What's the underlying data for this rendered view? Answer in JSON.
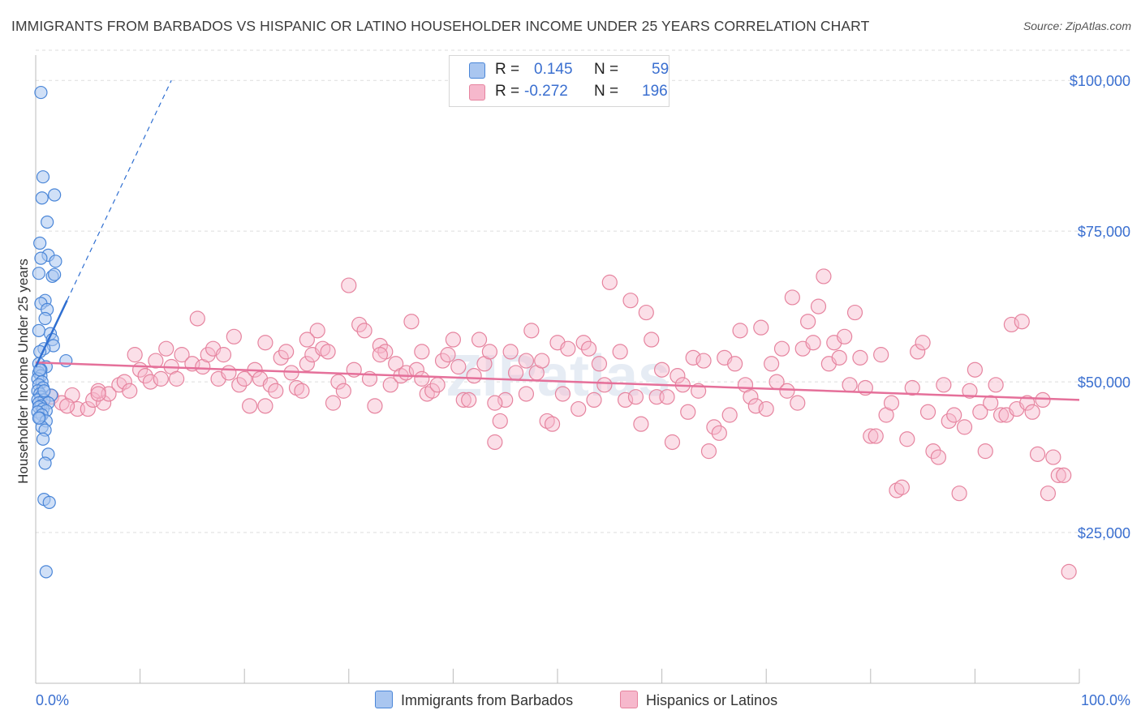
{
  "title": "IMMIGRANTS FROM BARBADOS VS HISPANIC OR LATINO HOUSEHOLDER INCOME UNDER 25 YEARS CORRELATION CHART",
  "source": "Source: ZipAtlas.com",
  "watermark": "ZIPatlas",
  "legend": {
    "r_label": "R =",
    "n_label": "N =",
    "series1": {
      "r": "0.145",
      "n": "59"
    },
    "series2": {
      "r": "-0.272",
      "n": "196"
    }
  },
  "colors": {
    "blue_fill": "#a9c6f0",
    "blue_stroke": "#4a86d8",
    "blue_line": "#2f6fd1",
    "pink_fill": "#f6b8cc",
    "pink_stroke": "#e6849f",
    "pink_line": "#e5709a",
    "axis_text": "#3a6fd0",
    "grid": "#dddddd"
  },
  "chart_data": {
    "type": "scatter",
    "title": "IMMIGRANTS FROM BARBADOS VS HISPANIC OR LATINO HOUSEHOLDER INCOME UNDER 25 YEARS CORRELATION CHART",
    "xlabel": "",
    "ylabel": "Householder Income Under 25 years",
    "xlim": [
      0,
      100
    ],
    "ylim": [
      0,
      105000
    ],
    "x_tick_labels": [
      "0.0%",
      "100.0%"
    ],
    "y_ticks": [
      25000,
      50000,
      75000,
      100000
    ],
    "y_tick_labels": [
      "$25,000",
      "$50,000",
      "$75,000",
      "$100,000"
    ],
    "grid": "horizontal dashed",
    "legend_position": "top-center",
    "series": [
      {
        "name": "Immigrants from Barbados",
        "points": [
          [
            0.5,
            98000
          ],
          [
            0.7,
            84000
          ],
          [
            1.8,
            81000
          ],
          [
            0.6,
            80500
          ],
          [
            1.1,
            76500
          ],
          [
            0.4,
            73000
          ],
          [
            1.2,
            71000
          ],
          [
            0.5,
            70500
          ],
          [
            1.9,
            70000
          ],
          [
            0.3,
            68000
          ],
          [
            1.6,
            67500
          ],
          [
            1.8,
            67800
          ],
          [
            0.9,
            63500
          ],
          [
            0.5,
            63000
          ],
          [
            1.1,
            62000
          ],
          [
            0.9,
            60500
          ],
          [
            1.4,
            58000
          ],
          [
            0.3,
            58500
          ],
          [
            1.6,
            57000
          ],
          [
            1.7,
            56000
          ],
          [
            0.8,
            55500
          ],
          [
            0.4,
            55000
          ],
          [
            2.9,
            53500
          ],
          [
            0.3,
            53000
          ],
          [
            1.0,
            52500
          ],
          [
            0.5,
            52000
          ],
          [
            0.3,
            51500
          ],
          [
            0.5,
            51000
          ],
          [
            0.2,
            50500
          ],
          [
            0.6,
            50000
          ],
          [
            0.3,
            49500
          ],
          [
            0.7,
            49000
          ],
          [
            0.2,
            48500
          ],
          [
            0.4,
            48000
          ],
          [
            1.5,
            47800
          ],
          [
            0.5,
            47500
          ],
          [
            0.2,
            47000
          ],
          [
            0.8,
            47000
          ],
          [
            0.3,
            46500
          ],
          [
            1.2,
            46500
          ],
          [
            0.5,
            46000
          ],
          [
            0.3,
            45800
          ],
          [
            0.7,
            45500
          ],
          [
            1.0,
            45200
          ],
          [
            0.2,
            45000
          ],
          [
            0.6,
            44500
          ],
          [
            0.4,
            44000
          ],
          [
            1.0,
            43500
          ],
          [
            0.6,
            42500
          ],
          [
            0.9,
            42000
          ],
          [
            0.7,
            40500
          ],
          [
            1.2,
            38000
          ],
          [
            0.9,
            36500
          ],
          [
            0.8,
            30500
          ],
          [
            1.3,
            30000
          ],
          [
            1.0,
            18500
          ],
          [
            0.3,
            44000
          ],
          [
            0.8,
            48500
          ],
          [
            0.4,
            52000
          ]
        ],
        "trend": {
          "x1": 0,
          "y1": 52500,
          "x2": 3,
          "y2": 63500,
          "dashed_extension_to": [
            13,
            100000
          ]
        }
      },
      {
        "name": "Hispanics or Latinos",
        "points": [
          [
            1.5,
            47500
          ],
          [
            2.5,
            46500
          ],
          [
            3.5,
            47800
          ],
          [
            4.0,
            45500
          ],
          [
            5.0,
            45500
          ],
          [
            5.5,
            47000
          ],
          [
            6.5,
            46500
          ],
          [
            6.0,
            48500
          ],
          [
            7.0,
            48000
          ],
          [
            8.0,
            49500
          ],
          [
            8.5,
            50000
          ],
          [
            9.0,
            48500
          ],
          [
            9.5,
            54500
          ],
          [
            10.0,
            52000
          ],
          [
            10.5,
            51000
          ],
          [
            11.0,
            50000
          ],
          [
            11.5,
            53500
          ],
          [
            12.0,
            50500
          ],
          [
            12.5,
            55500
          ],
          [
            13.0,
            52500
          ],
          [
            13.5,
            50500
          ],
          [
            14.0,
            54500
          ],
          [
            15.0,
            53000
          ],
          [
            15.5,
            60500
          ],
          [
            16.0,
            52500
          ],
          [
            16.5,
            54500
          ],
          [
            17.0,
            55500
          ],
          [
            17.5,
            50500
          ],
          [
            18.0,
            54500
          ],
          [
            18.5,
            51500
          ],
          [
            19.0,
            57500
          ],
          [
            19.5,
            49500
          ],
          [
            20.0,
            50500
          ],
          [
            20.5,
            46000
          ],
          [
            21.0,
            52000
          ],
          [
            21.5,
            50500
          ],
          [
            22.0,
            56500
          ],
          [
            22.5,
            49500
          ],
          [
            23.0,
            48500
          ],
          [
            23.5,
            54000
          ],
          [
            24.0,
            55000
          ],
          [
            24.5,
            51500
          ],
          [
            25.0,
            49000
          ],
          [
            25.5,
            48500
          ],
          [
            26.0,
            53000
          ],
          [
            26.5,
            54500
          ],
          [
            27.0,
            58500
          ],
          [
            27.5,
            55500
          ],
          [
            28.0,
            55000
          ],
          [
            28.5,
            46500
          ],
          [
            29.0,
            50000
          ],
          [
            29.5,
            48500
          ],
          [
            30.0,
            66000
          ],
          [
            30.5,
            52000
          ],
          [
            31.0,
            59500
          ],
          [
            31.5,
            58500
          ],
          [
            32.0,
            50500
          ],
          [
            32.5,
            46000
          ],
          [
            33.0,
            56000
          ],
          [
            33.5,
            55000
          ],
          [
            34.0,
            49500
          ],
          [
            34.5,
            53000
          ],
          [
            35.0,
            51000
          ],
          [
            35.5,
            51500
          ],
          [
            36.0,
            60000
          ],
          [
            36.5,
            52000
          ],
          [
            37.0,
            55000
          ],
          [
            37.5,
            48000
          ],
          [
            38.0,
            48500
          ],
          [
            38.5,
            49500
          ],
          [
            39.0,
            53500
          ],
          [
            39.5,
            54500
          ],
          [
            40.0,
            57000
          ],
          [
            40.5,
            52500
          ],
          [
            41.0,
            47000
          ],
          [
            41.5,
            47000
          ],
          [
            42.0,
            51000
          ],
          [
            42.5,
            57000
          ],
          [
            43.0,
            53000
          ],
          [
            43.5,
            55000
          ],
          [
            44.0,
            40000
          ],
          [
            44.5,
            43500
          ],
          [
            45.0,
            47000
          ],
          [
            45.5,
            55000
          ],
          [
            46.0,
            51500
          ],
          [
            47.0,
            48000
          ],
          [
            47.5,
            58500
          ],
          [
            48.0,
            51500
          ],
          [
            48.5,
            53500
          ],
          [
            49.0,
            43500
          ],
          [
            49.5,
            43000
          ],
          [
            50.0,
            56500
          ],
          [
            50.5,
            48000
          ],
          [
            51.0,
            55500
          ],
          [
            52.0,
            45500
          ],
          [
            52.5,
            56500
          ],
          [
            53.0,
            55500
          ],
          [
            53.5,
            47000
          ],
          [
            54.0,
            53000
          ],
          [
            54.5,
            49500
          ],
          [
            55.0,
            66500
          ],
          [
            56.0,
            55000
          ],
          [
            56.5,
            47000
          ],
          [
            57.0,
            63500
          ],
          [
            57.5,
            47500
          ],
          [
            58.0,
            43000
          ],
          [
            58.5,
            61500
          ],
          [
            59.0,
            57000
          ],
          [
            59.5,
            47500
          ],
          [
            60.0,
            52000
          ],
          [
            60.5,
            47500
          ],
          [
            61.0,
            40000
          ],
          [
            61.5,
            51000
          ],
          [
            62.0,
            49500
          ],
          [
            62.5,
            45000
          ],
          [
            63.0,
            54000
          ],
          [
            63.5,
            48500
          ],
          [
            64.0,
            53500
          ],
          [
            64.5,
            38500
          ],
          [
            65.0,
            42500
          ],
          [
            65.5,
            41500
          ],
          [
            66.0,
            54000
          ],
          [
            66.5,
            44500
          ],
          [
            67.0,
            53000
          ],
          [
            67.5,
            58500
          ],
          [
            68.0,
            49500
          ],
          [
            68.5,
            47500
          ],
          [
            69.0,
            46000
          ],
          [
            69.5,
            59000
          ],
          [
            70.0,
            45500
          ],
          [
            70.5,
            53000
          ],
          [
            71.0,
            50000
          ],
          [
            71.5,
            55500
          ],
          [
            72.0,
            48500
          ],
          [
            72.5,
            64000
          ],
          [
            73.0,
            46500
          ],
          [
            73.5,
            55500
          ],
          [
            74.0,
            60000
          ],
          [
            74.5,
            56500
          ],
          [
            75.0,
            62500
          ],
          [
            75.5,
            67500
          ],
          [
            76.0,
            53000
          ],
          [
            76.5,
            56500
          ],
          [
            77.0,
            54000
          ],
          [
            77.5,
            57500
          ],
          [
            78.0,
            49500
          ],
          [
            78.5,
            61500
          ],
          [
            79.0,
            54000
          ],
          [
            79.5,
            49000
          ],
          [
            80.0,
            41000
          ],
          [
            80.5,
            41000
          ],
          [
            81.0,
            54500
          ],
          [
            81.5,
            44500
          ],
          [
            82.0,
            46500
          ],
          [
            82.5,
            32000
          ],
          [
            83.0,
            32500
          ],
          [
            83.5,
            40500
          ],
          [
            84.0,
            49000
          ],
          [
            84.5,
            55000
          ],
          [
            85.0,
            56500
          ],
          [
            85.5,
            45000
          ],
          [
            86.0,
            38500
          ],
          [
            86.5,
            37500
          ],
          [
            87.0,
            49500
          ],
          [
            87.5,
            43500
          ],
          [
            88.0,
            44500
          ],
          [
            88.5,
            31500
          ],
          [
            89.0,
            42500
          ],
          [
            89.5,
            48500
          ],
          [
            90.0,
            52000
          ],
          [
            90.5,
            45000
          ],
          [
            91.0,
            38500
          ],
          [
            91.5,
            46500
          ],
          [
            92.0,
            49500
          ],
          [
            92.5,
            44500
          ],
          [
            93.0,
            44500
          ],
          [
            93.5,
            59500
          ],
          [
            94.0,
            45500
          ],
          [
            94.5,
            60000
          ],
          [
            95.0,
            46500
          ],
          [
            95.5,
            45000
          ],
          [
            96.0,
            38000
          ],
          [
            96.5,
            47000
          ],
          [
            97.0,
            31500
          ],
          [
            97.5,
            37500
          ],
          [
            98.0,
            34500
          ],
          [
            98.5,
            34500
          ],
          [
            99.0,
            18500
          ],
          [
            33.0,
            54500
          ],
          [
            47.0,
            53500
          ],
          [
            22.0,
            46000
          ],
          [
            26.0,
            57000
          ],
          [
            37.0,
            50500
          ],
          [
            44.0,
            46500
          ],
          [
            6.0,
            48000
          ],
          [
            3.0,
            46000
          ]
        ],
        "trend": {
          "x1": 0,
          "y1": 53200,
          "x2": 100,
          "y2": 47000
        }
      }
    ]
  },
  "bottom_legend": [
    "Immigrants from Barbados",
    "Hispanics or Latinos"
  ]
}
